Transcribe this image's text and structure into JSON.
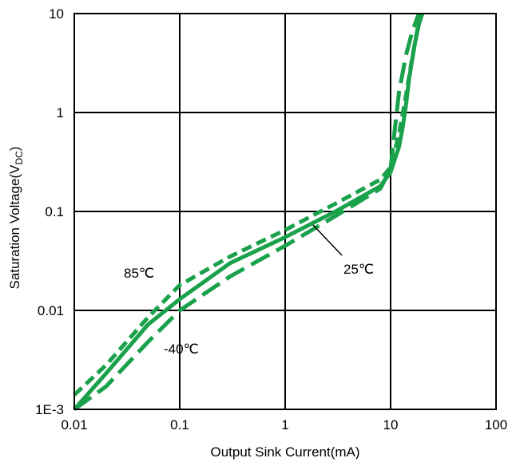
{
  "chart_data": {
    "type": "line",
    "title": "",
    "xlabel": "Output Sink Current(mA)",
    "ylabel": "Saturation Voltage(V",
    "ylabel_subscript": "DC",
    "ylabel_suffix": ")",
    "xscale": "log",
    "yscale": "log",
    "xlim": [
      0.01,
      100
    ],
    "ylim": [
      0.001,
      10
    ],
    "grid": true,
    "legend": "none",
    "x_tick_values": [
      0.01,
      0.1,
      1,
      10,
      100
    ],
    "x_tick_labels": [
      "0.01",
      "0.1",
      "1",
      "10",
      "100"
    ],
    "y_tick_values": [
      0.001,
      0.01,
      0.1,
      1,
      10
    ],
    "y_tick_labels": [
      "1E-3",
      "0.01",
      "0.1",
      "1",
      "10"
    ],
    "curve_color": "#1aa14b",
    "series": [
      {
        "label": "85℃",
        "style": "dotted",
        "x": [
          0.01,
          0.02,
          0.05,
          0.1,
          0.3,
          1,
          3,
          8,
          10,
          12,
          14,
          16,
          18,
          20
        ],
        "y": [
          0.0014,
          0.0028,
          0.0085,
          0.018,
          0.035,
          0.065,
          0.12,
          0.21,
          0.28,
          0.6,
          1.5,
          3.5,
          7,
          10
        ]
      },
      {
        "label": "25℃",
        "style": "solid",
        "x": [
          0.01,
          0.02,
          0.05,
          0.1,
          0.3,
          1,
          3,
          8,
          10,
          12,
          13,
          14,
          15,
          17,
          19.5
        ],
        "y": [
          0.001,
          0.0023,
          0.0072,
          0.013,
          0.03,
          0.055,
          0.1,
          0.18,
          0.25,
          0.45,
          0.7,
          1.2,
          2.2,
          5,
          10
        ]
      },
      {
        "label": "-40℃",
        "style": "dashed",
        "x": [
          0.01,
          0.02,
          0.05,
          0.1,
          0.3,
          1,
          3,
          8,
          10,
          11,
          12,
          14,
          16,
          18.5
        ],
        "y": [
          0.001,
          0.0017,
          0.0048,
          0.01,
          0.022,
          0.045,
          0.09,
          0.17,
          0.27,
          0.7,
          1.6,
          3.8,
          6.5,
          10
        ]
      }
    ],
    "annotations": [
      {
        "text": "85℃",
        "target_series": "85℃"
      },
      {
        "text": "-40℃",
        "target_series": "-40℃"
      },
      {
        "text": "25℃",
        "target_series": "25℃"
      }
    ]
  }
}
